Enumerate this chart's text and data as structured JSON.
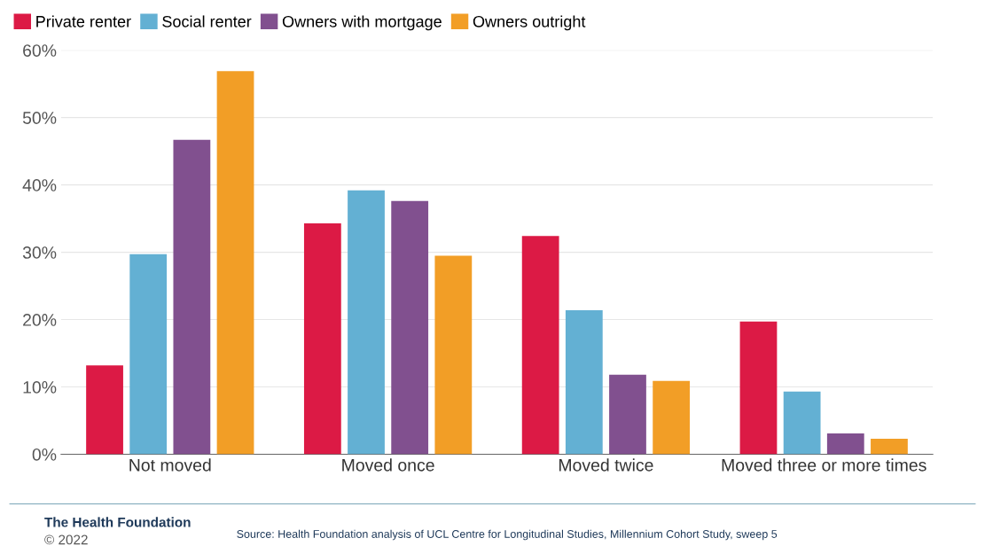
{
  "chart_data": {
    "type": "bar",
    "categories": [
      "Not moved",
      "Moved once",
      "Moved twice",
      "Moved three or more times"
    ],
    "series": [
      {
        "name": "Private renter",
        "color": "#dc1a45",
        "values": [
          13.2,
          34.3,
          32.4,
          19.7
        ]
      },
      {
        "name": "Social renter",
        "color": "#63b0d3",
        "values": [
          29.7,
          39.2,
          21.4,
          9.3
        ]
      },
      {
        "name": "Owners with mortgage",
        "color": "#81508f",
        "values": [
          46.7,
          37.6,
          11.8,
          3.1
        ]
      },
      {
        "name": "Owners outright",
        "color": "#f29e26",
        "values": [
          56.9,
          29.5,
          10.9,
          2.3
        ]
      }
    ],
    "ylim": [
      0,
      60
    ],
    "yticks": [
      {
        "value": 0,
        "label": "0%"
      },
      {
        "value": 10,
        "label": "10%"
      },
      {
        "value": 20,
        "label": "20%"
      },
      {
        "value": 30,
        "label": "30%"
      },
      {
        "value": 40,
        "label": "40%"
      },
      {
        "value": 50,
        "label": "50%"
      },
      {
        "value": 60,
        "label": "60%"
      }
    ],
    "grid": "y",
    "legend": "top left",
    "annotations": [
      "The Health Foundation",
      "© 2022",
      "Source: Health Foundation analysis of UCL Centre for Longitudinal Studies, Millennium Cohort Study, sweep 5"
    ]
  }
}
